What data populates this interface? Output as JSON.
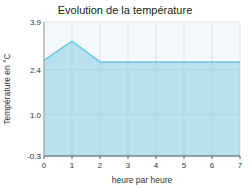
{
  "chart_data": {
    "type": "area",
    "title": "Evolution de la température",
    "xlabel": "heure par heure",
    "ylabel": "Température en °C",
    "x": [
      0,
      1,
      2,
      3,
      4,
      5,
      6,
      7
    ],
    "values": [
      2.7,
      3.3,
      2.65,
      2.65,
      2.65,
      2.65,
      2.65,
      2.65
    ],
    "color": "#6ec6e0",
    "xlim": [
      0,
      7
    ],
    "ylim": [
      -0.3,
      3.9
    ],
    "xticks": [
      0,
      1,
      2,
      3,
      4,
      5,
      6,
      7
    ],
    "yticks": [
      -0.3,
      {
        "value": 1.0,
        "label": "1.0"
      },
      2.4,
      3.9
    ],
    "grid": true
  }
}
